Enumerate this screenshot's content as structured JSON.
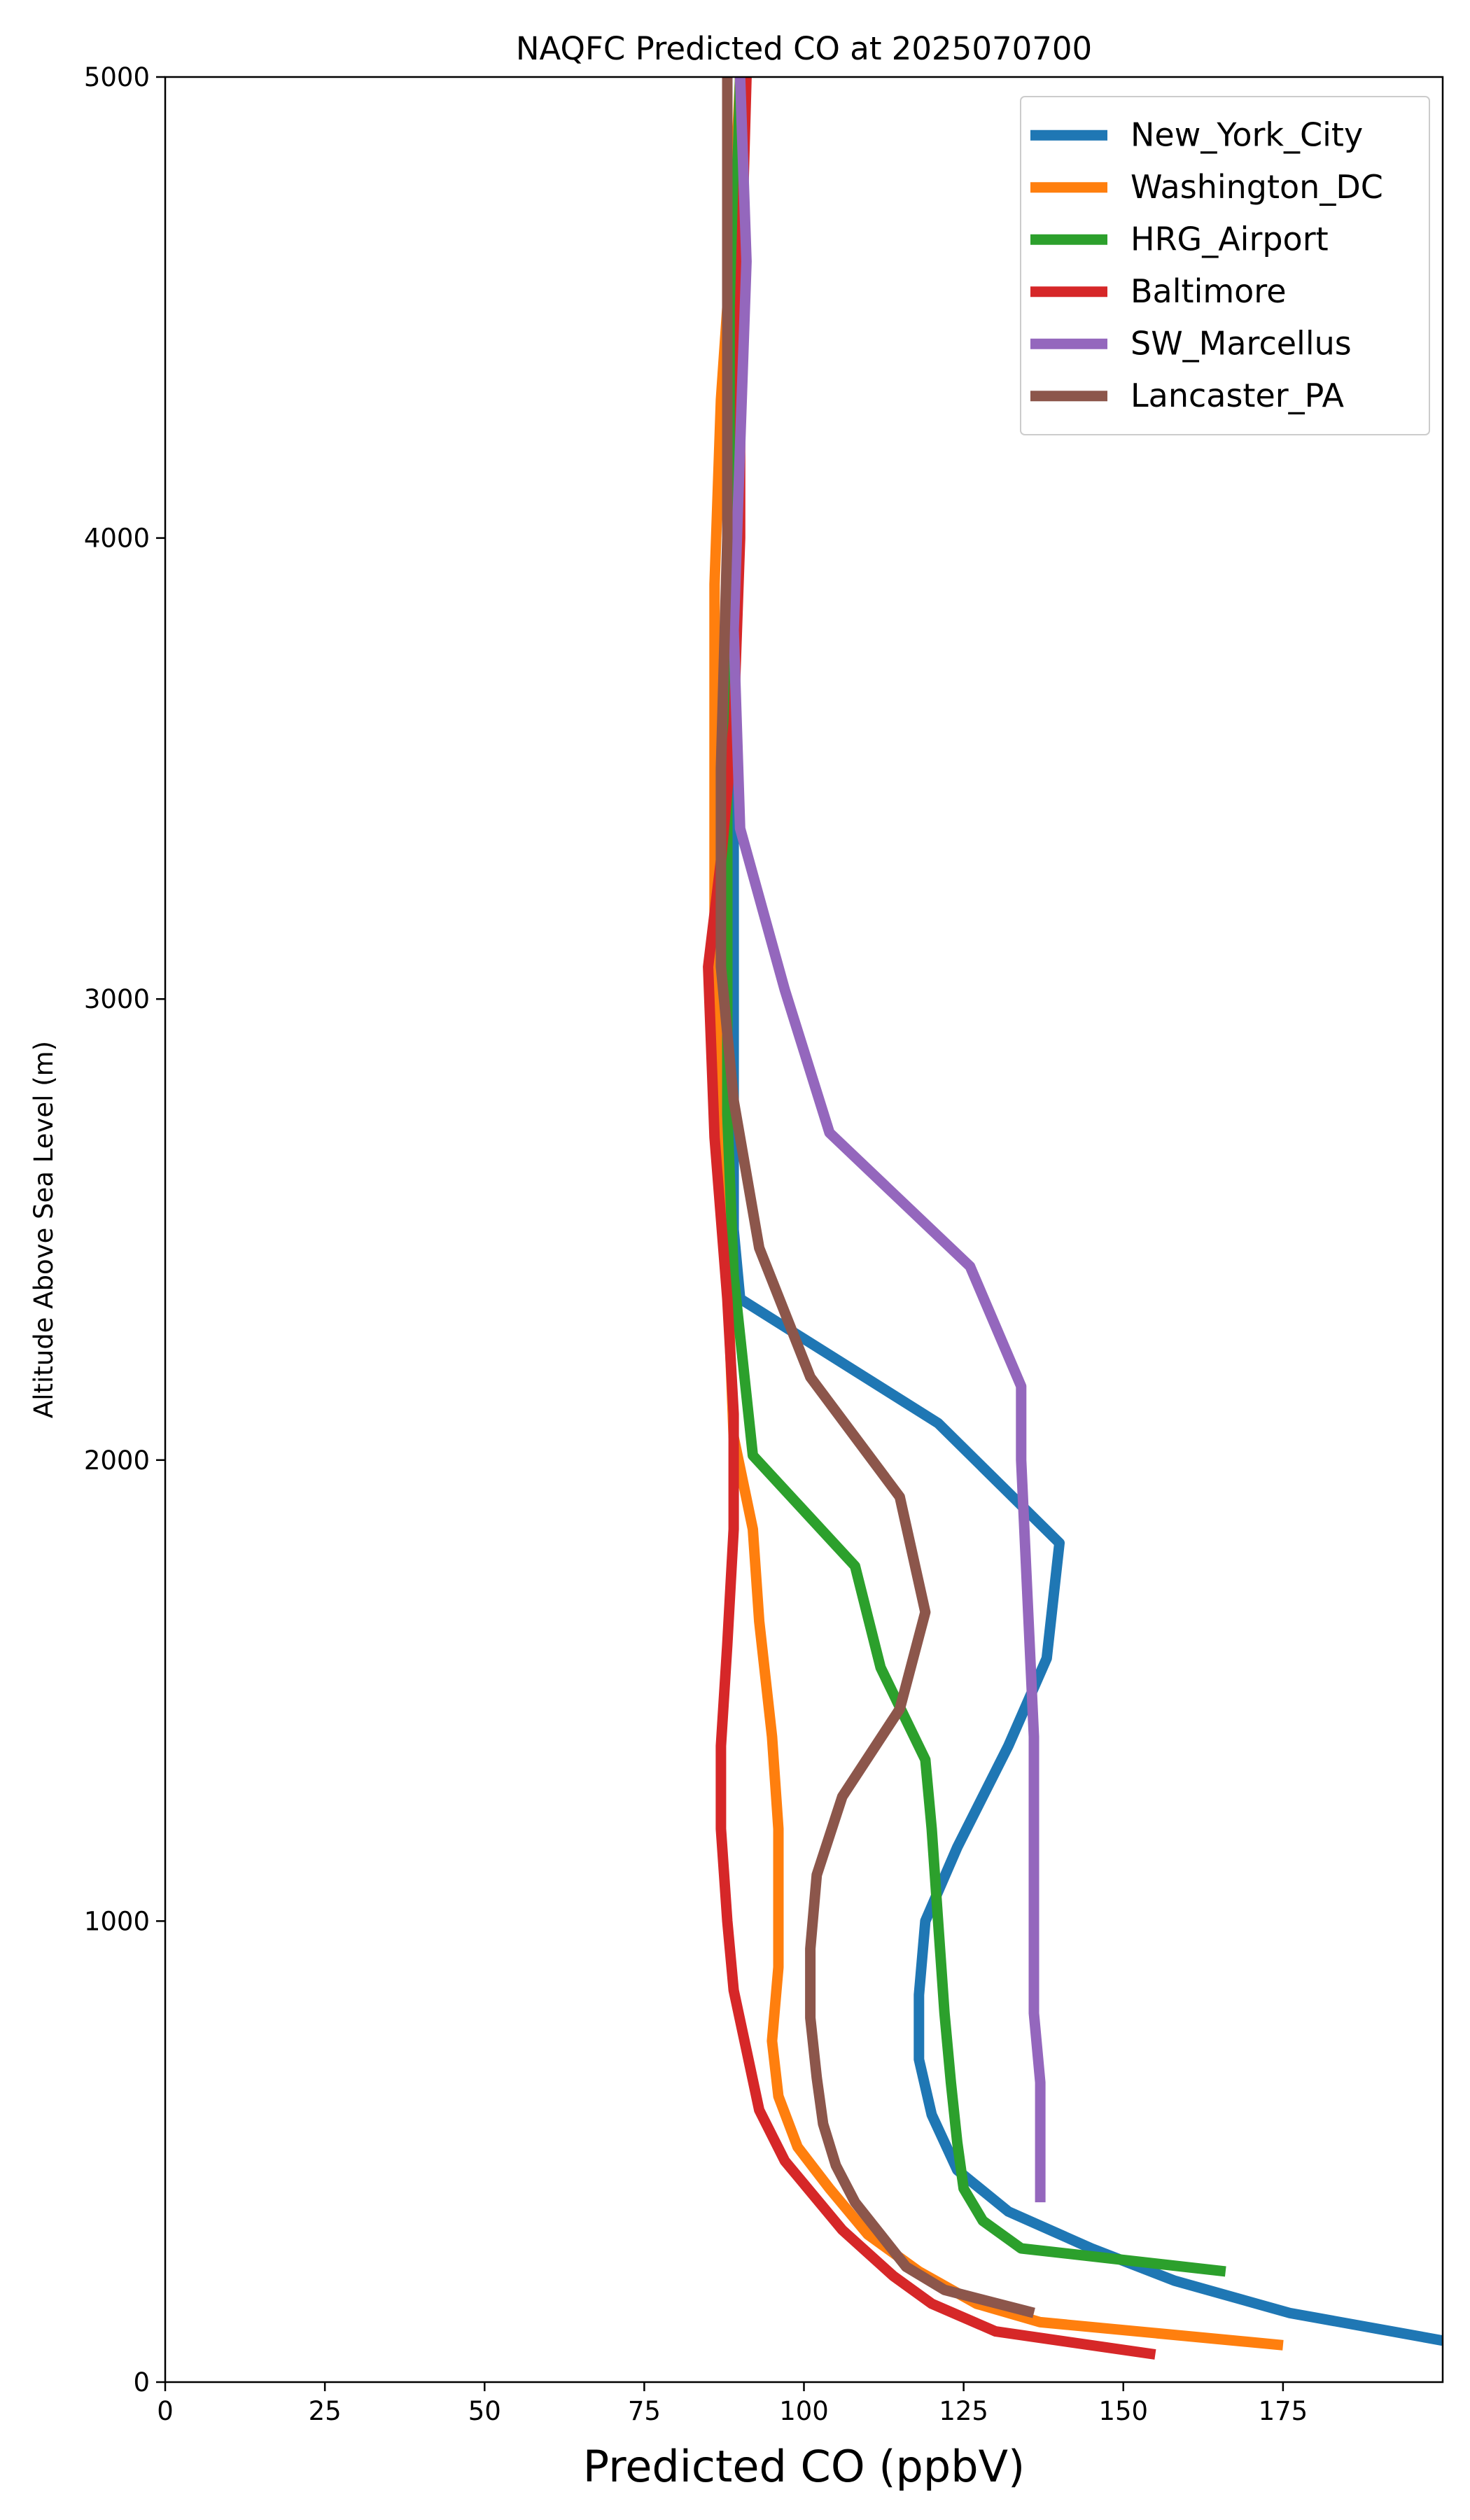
{
  "chart_data": {
    "type": "line",
    "title": "NAQFC Predicted CO at 2025070700",
    "xlabel": "Predicted CO (ppbV)",
    "ylabel": "Altitude Above Sea Level (m)",
    "xlim": [
      0,
      200
    ],
    "ylim": [
      0,
      5000
    ],
    "x_ticks": [
      0,
      25,
      50,
      75,
      100,
      125,
      150,
      175
    ],
    "y_ticks": [
      0,
      1000,
      2000,
      3000,
      4000,
      5000
    ],
    "grid": false,
    "legend_position": "top-right",
    "series": [
      {
        "name": "New_York_City",
        "color": "#1f77b4",
        "points": [
          [
            200,
            90
          ],
          [
            176,
            150
          ],
          [
            158,
            220
          ],
          [
            145,
            290
          ],
          [
            132,
            370
          ],
          [
            124,
            460
          ],
          [
            120,
            580
          ],
          [
            118,
            700
          ],
          [
            118,
            840
          ],
          [
            119,
            1000
          ],
          [
            124,
            1160
          ],
          [
            132,
            1380
          ],
          [
            138,
            1570
          ],
          [
            140,
            1820
          ],
          [
            121,
            2080
          ],
          [
            90,
            2350
          ],
          [
            89,
            2500
          ],
          [
            89,
            3000
          ],
          [
            89,
            3500
          ]
        ]
      },
      {
        "name": "Washington_DC",
        "color": "#ff7f0e",
        "points": [
          [
            175,
            80
          ],
          [
            137,
            130
          ],
          [
            127,
            170
          ],
          [
            118,
            240
          ],
          [
            110,
            320
          ],
          [
            104,
            420
          ],
          [
            99,
            510
          ],
          [
            96,
            620
          ],
          [
            95,
            740
          ],
          [
            96,
            900
          ],
          [
            96,
            1030
          ],
          [
            96,
            1200
          ],
          [
            95,
            1400
          ],
          [
            93,
            1650
          ],
          [
            92,
            1850
          ],
          [
            89,
            2050
          ],
          [
            88,
            2400
          ],
          [
            87,
            2700
          ],
          [
            86,
            3100
          ],
          [
            86,
            3500
          ],
          [
            86,
            3900
          ],
          [
            87,
            4300
          ],
          [
            89,
            4700
          ],
          [
            90,
            5000
          ]
        ]
      },
      {
        "name": "HRG_Airport",
        "color": "#2ca02c",
        "points": [
          [
            166,
            240
          ],
          [
            134,
            290
          ],
          [
            128,
            350
          ],
          [
            125,
            420
          ],
          [
            124,
            520
          ],
          [
            123,
            650
          ],
          [
            122,
            800
          ],
          [
            121,
            1000
          ],
          [
            120,
            1200
          ],
          [
            119,
            1350
          ],
          [
            112,
            1550
          ],
          [
            108,
            1770
          ],
          [
            92,
            2010
          ],
          [
            89,
            2400
          ],
          [
            88,
            2750
          ],
          [
            88,
            3000
          ],
          [
            88,
            3500
          ],
          [
            88,
            4000
          ],
          [
            89,
            4500
          ],
          [
            90,
            5000
          ]
        ]
      },
      {
        "name": "Baltimore",
        "color": "#d62728",
        "points": [
          [
            155,
            60
          ],
          [
            130,
            110
          ],
          [
            120,
            170
          ],
          [
            114,
            230
          ],
          [
            106,
            330
          ],
          [
            97,
            480
          ],
          [
            93,
            590
          ],
          [
            91,
            720
          ],
          [
            89,
            850
          ],
          [
            88,
            1000
          ],
          [
            87,
            1200
          ],
          [
            87,
            1380
          ],
          [
            88,
            1600
          ],
          [
            89,
            1850
          ],
          [
            89,
            2100
          ],
          [
            88,
            2350
          ],
          [
            86,
            2700
          ],
          [
            85,
            3070
          ],
          [
            87,
            3300
          ],
          [
            89,
            3600
          ],
          [
            90,
            4000
          ],
          [
            90,
            4500
          ],
          [
            91,
            5000
          ]
        ]
      },
      {
        "name": "SW_Marcellus",
        "color": "#9467bd",
        "points": [
          [
            137,
            390
          ],
          [
            137,
            460
          ],
          [
            137,
            560
          ],
          [
            137,
            650
          ],
          [
            136,
            800
          ],
          [
            136,
            1000
          ],
          [
            136,
            1200
          ],
          [
            136,
            1400
          ],
          [
            135,
            1700
          ],
          [
            134,
            2000
          ],
          [
            134,
            2160
          ],
          [
            126,
            2420
          ],
          [
            104,
            2710
          ],
          [
            97,
            3020
          ],
          [
            90,
            3370
          ],
          [
            89,
            3800
          ],
          [
            90,
            4200
          ],
          [
            91,
            4600
          ],
          [
            90,
            5000
          ]
        ]
      },
      {
        "name": "Lancaster_PA",
        "color": "#8c564b",
        "points": [
          [
            136,
            150
          ],
          [
            122,
            200
          ],
          [
            116,
            250
          ],
          [
            112,
            320
          ],
          [
            108,
            390
          ],
          [
            105,
            470
          ],
          [
            103,
            560
          ],
          [
            102,
            660
          ],
          [
            101,
            790
          ],
          [
            101,
            940
          ],
          [
            102,
            1100
          ],
          [
            106,
            1270
          ],
          [
            115,
            1460
          ],
          [
            119,
            1670
          ],
          [
            115,
            1920
          ],
          [
            101,
            2180
          ],
          [
            93,
            2460
          ],
          [
            89,
            2780
          ],
          [
            87,
            3070
          ],
          [
            87,
            3500
          ],
          [
            88,
            4000
          ],
          [
            88,
            4500
          ],
          [
            88,
            5000
          ]
        ]
      }
    ]
  }
}
